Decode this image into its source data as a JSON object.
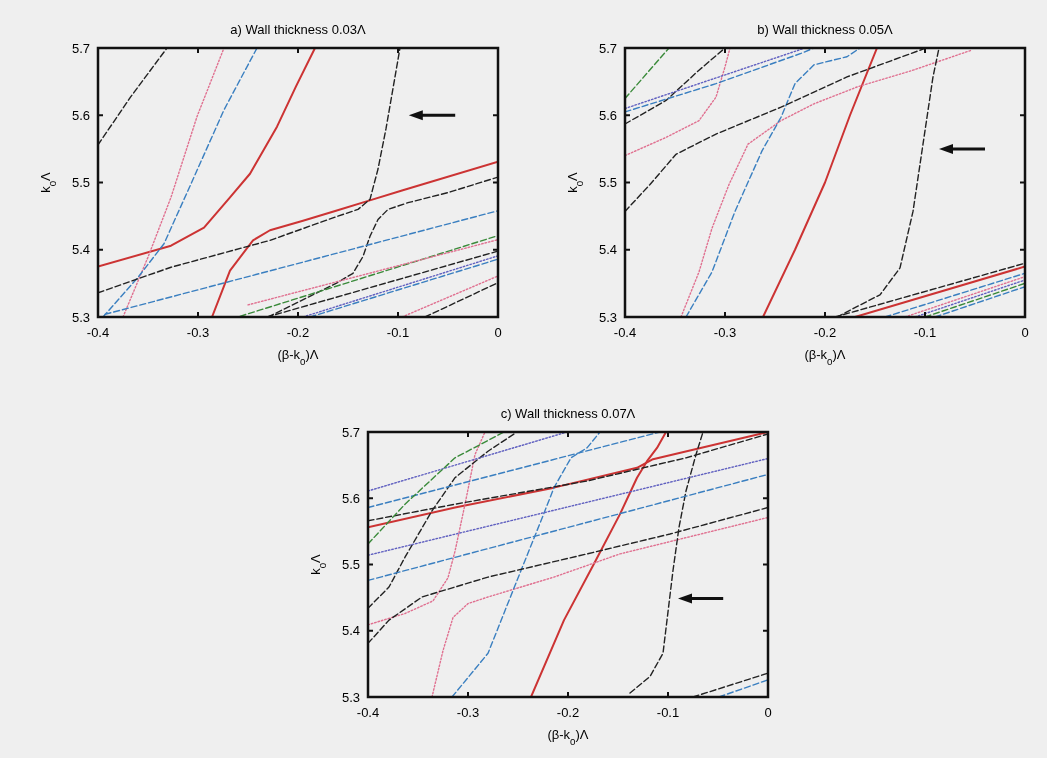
{
  "chart_data": [
    {
      "type": "line",
      "title": "a) Wall thickness 0.03Λ",
      "xlabel": "(β-k$_{0}$)Λ",
      "ylabel": "k$_{0}$Λ",
      "xlim": [
        -0.4,
        0
      ],
      "ylim": [
        5.3,
        5.7
      ],
      "xticks": [
        -0.4,
        -0.3,
        -0.2,
        -0.1,
        0
      ],
      "yticks": [
        5.3,
        5.4,
        5.5,
        5.6,
        5.7
      ],
      "series": [
        {
          "color": "#cc3333",
          "line_style": "solid",
          "x": [
            -0.4,
            -0.327,
            -0.294,
            -0.268,
            -0.248,
            -0.221,
            -0.202,
            -0.183
          ],
          "values": [
            5.375,
            5.406,
            5.433,
            5.478,
            5.513,
            5.583,
            5.643,
            5.7
          ]
        },
        {
          "color": "#cc3333",
          "line_style": "solid",
          "x": [
            -0.286,
            -0.268,
            -0.245,
            -0.228,
            -0.195,
            -0.162,
            -0.129,
            -0.096,
            0
          ],
          "values": [
            5.3,
            5.369,
            5.414,
            5.429,
            5.443,
            5.458,
            5.473,
            5.488,
            5.531
          ]
        },
        {
          "color": "#e07090",
          "line_style": "dotted",
          "x": [
            -0.375,
            -0.35,
            -0.327,
            -0.301,
            -0.274
          ],
          "values": [
            5.3,
            5.389,
            5.478,
            5.598,
            5.7
          ]
        },
        {
          "color": "#3a7fc0",
          "line_style": "dashed",
          "x": [
            -0.395,
            -0.36,
            -0.334,
            -0.307,
            -0.274,
            -0.241
          ],
          "values": [
            5.3,
            5.359,
            5.409,
            5.498,
            5.608,
            5.7
          ]
        },
        {
          "color": "#222222",
          "line_style": "dashed",
          "x": [
            -0.4,
            -0.367,
            -0.331
          ],
          "values": [
            5.556,
            5.628,
            5.7
          ]
        },
        {
          "color": "#222222",
          "line_style": "dashed",
          "x": [
            -0.4,
            -0.327,
            -0.228,
            -0.162,
            -0.14,
            -0.128,
            -0.12,
            -0.112,
            -0.105,
            -0.098
          ],
          "values": [
            5.336,
            5.374,
            5.414,
            5.449,
            5.46,
            5.475,
            5.52,
            5.58,
            5.64,
            5.7
          ]
        },
        {
          "color": "#222222",
          "line_style": "dashed",
          "x": [
            -0.23,
            -0.162,
            -0.145,
            -0.135,
            -0.128,
            -0.12,
            -0.11,
            -0.09,
            -0.05,
            0
          ],
          "values": [
            5.3,
            5.35,
            5.365,
            5.39,
            5.42,
            5.445,
            5.46,
            5.47,
            5.485,
            5.508
          ]
        },
        {
          "color": "#3a7fc0",
          "line_style": "dashed",
          "x": [
            -0.393,
            0
          ],
          "values": [
            5.304,
            5.458
          ]
        },
        {
          "color": "#3a8a3a",
          "line_style": "dashed",
          "x": [
            -0.258,
            0
          ],
          "values": [
            5.301,
            5.421
          ]
        },
        {
          "color": "#e07090",
          "line_style": "dotted",
          "x": [
            -0.25,
            0
          ],
          "values": [
            5.318,
            5.415
          ]
        },
        {
          "color": "#222222",
          "line_style": "dashed",
          "x": [
            -0.231,
            0
          ],
          "values": [
            5.3,
            5.398
          ]
        },
        {
          "color": "#6060c0",
          "line_style": "dotted",
          "x": [
            -0.195,
            0
          ],
          "values": [
            5.3,
            5.391
          ]
        },
        {
          "color": "#3a7fc0",
          "line_style": "dashed",
          "x": [
            -0.188,
            0
          ],
          "values": [
            5.3,
            5.386
          ]
        },
        {
          "color": "#e07090",
          "line_style": "dotted",
          "x": [
            -0.096,
            0
          ],
          "values": [
            5.3,
            5.361
          ]
        },
        {
          "color": "#222222",
          "line_style": "dashed",
          "x": [
            -0.073,
            0
          ],
          "values": [
            5.3,
            5.351
          ]
        }
      ]
    },
    {
      "type": "line",
      "title": "b) Wall thickness 0.05Λ",
      "xlabel": "(β-k$_{0}$)Λ",
      "ylabel": "k$_{0}$Λ",
      "xlim": [
        -0.4,
        0
      ],
      "ylim": [
        5.3,
        5.7
      ],
      "xticks": [
        -0.4,
        -0.3,
        -0.2,
        -0.1,
        0
      ],
      "yticks": [
        5.3,
        5.4,
        5.5,
        5.6,
        5.7
      ],
      "series": [
        {
          "color": "#cc3333",
          "line_style": "solid",
          "x": [
            -0.262,
            -0.23,
            -0.2,
            -0.175,
            -0.148
          ],
          "values": [
            5.3,
            5.4,
            5.5,
            5.6,
            5.7
          ]
        },
        {
          "color": "#e07090",
          "line_style": "dotted",
          "x": [
            -0.344,
            -0.326,
            -0.313,
            -0.296,
            -0.277,
            -0.244,
            -0.211,
            -0.168,
            -0.112,
            -0.053
          ],
          "values": [
            5.3,
            5.367,
            5.432,
            5.497,
            5.557,
            5.592,
            5.617,
            5.642,
            5.667,
            5.697
          ]
        },
        {
          "color": "#e07090",
          "line_style": "dotted",
          "x": [
            -0.4,
            -0.359,
            -0.326,
            -0.309,
            -0.3,
            -0.295
          ],
          "values": [
            5.54,
            5.567,
            5.592,
            5.627,
            5.672,
            5.7
          ]
        },
        {
          "color": "#3a7fc0",
          "line_style": "dashed",
          "x": [
            -0.339,
            -0.313,
            -0.29,
            -0.263,
            -0.244,
            -0.23,
            -0.211,
            -0.178,
            -0.165
          ],
          "values": [
            5.3,
            5.367,
            5.457,
            5.547,
            5.597,
            5.647,
            5.675,
            5.687,
            5.7
          ]
        },
        {
          "color": "#222222",
          "line_style": "dashed",
          "x": [
            -0.4,
            -0.375,
            -0.349,
            -0.309,
            -0.244,
            -0.178,
            -0.099
          ],
          "values": [
            5.457,
            5.497,
            5.542,
            5.572,
            5.612,
            5.657,
            5.7
          ]
        },
        {
          "color": "#222222",
          "line_style": "dashed",
          "x": [
            -0.4,
            -0.359,
            -0.326,
            -0.3
          ],
          "values": [
            5.587,
            5.622,
            5.667,
            5.7
          ]
        },
        {
          "color": "#3a7fc0",
          "line_style": "dashed",
          "x": [
            -0.4,
            -0.309,
            -0.224,
            -0.211
          ],
          "values": [
            5.605,
            5.647,
            5.692,
            5.7
          ]
        },
        {
          "color": "#6060c0",
          "line_style": "dotted",
          "x": [
            -0.4,
            -0.22
          ],
          "values": [
            5.61,
            5.7
          ]
        },
        {
          "color": "#3a8a3a",
          "line_style": "dashed",
          "x": [
            -0.4,
            -0.356
          ],
          "values": [
            5.625,
            5.7
          ]
        },
        {
          "color": "#222222",
          "line_style": "dashed",
          "x": [
            -0.188,
            -0.145,
            -0.125,
            -0.112,
            -0.102,
            -0.092,
            -0.086
          ],
          "values": [
            5.3,
            5.333,
            5.373,
            5.457,
            5.557,
            5.657,
            5.7
          ]
        },
        {
          "color": "#222222",
          "line_style": "dashed",
          "x": [
            -0.19,
            0
          ],
          "values": [
            5.3,
            5.38
          ]
        },
        {
          "color": "#cc3333",
          "line_style": "solid",
          "x": [
            -0.17,
            0
          ],
          "values": [
            5.3,
            5.375
          ]
        },
        {
          "color": "#3a7fc0",
          "line_style": "dashed",
          "x": [
            -0.14,
            0
          ],
          "values": [
            5.3,
            5.365
          ]
        },
        {
          "color": "#e07090",
          "line_style": "dotted",
          "x": [
            -0.12,
            0
          ],
          "values": [
            5.3,
            5.36
          ]
        },
        {
          "color": "#6060c0",
          "line_style": "dotted",
          "x": [
            -0.11,
            0
          ],
          "values": [
            5.3,
            5.355
          ]
        },
        {
          "color": "#3a8a3a",
          "line_style": "dashed",
          "x": [
            -0.1,
            0
          ],
          "values": [
            5.3,
            5.35
          ]
        },
        {
          "color": "#3a7fc0",
          "line_style": "dashed",
          "x": [
            -0.09,
            0
          ],
          "values": [
            5.3,
            5.345
          ]
        }
      ]
    },
    {
      "type": "line",
      "title": "c) Wall thickness 0.07Λ",
      "xlabel": "(β-k$_{0}$)Λ",
      "ylabel": "k$_{0}$Λ",
      "xlim": [
        -0.4,
        0
      ],
      "ylim": [
        5.3,
        5.7
      ],
      "xticks": [
        -0.4,
        -0.3,
        -0.2,
        -0.1,
        0
      ],
      "yticks": [
        5.3,
        5.4,
        5.5,
        5.6,
        5.7
      ],
      "series": [
        {
          "color": "#cc3333",
          "line_style": "solid",
          "x": [
            -0.4,
            -0.313,
            -0.214,
            -0.131,
            -0.115,
            0
          ],
          "values": [
            5.556,
            5.586,
            5.616,
            5.646,
            5.659,
            5.7
          ]
        },
        {
          "color": "#cc3333",
          "line_style": "solid",
          "x": [
            -0.237,
            -0.204,
            -0.174,
            -0.148,
            -0.131,
            -0.121,
            -0.111,
            -0.102
          ],
          "values": [
            5.3,
            5.416,
            5.501,
            5.576,
            5.631,
            5.656,
            5.676,
            5.7
          ]
        },
        {
          "color": "#e07090",
          "line_style": "dotted",
          "x": [
            -0.4,
            -0.363,
            -0.335,
            -0.32,
            -0.313,
            -0.303,
            -0.293,
            -0.283
          ],
          "values": [
            5.409,
            5.426,
            5.445,
            5.48,
            5.52,
            5.591,
            5.666,
            5.7
          ]
        },
        {
          "color": "#e07090",
          "line_style": "dotted",
          "x": [
            -0.336,
            -0.325,
            -0.315,
            -0.3,
            -0.28,
            -0.214,
            -0.148,
            0
          ],
          "values": [
            5.3,
            5.37,
            5.42,
            5.441,
            5.451,
            5.481,
            5.516,
            5.571
          ]
        },
        {
          "color": "#3a7fc0",
          "line_style": "dashed",
          "x": [
            -0.316,
            -0.28,
            -0.247,
            -0.227,
            -0.214,
            -0.197,
            -0.181,
            -0.168
          ],
          "values": [
            5.3,
            5.366,
            5.491,
            5.566,
            5.616,
            5.661,
            5.676,
            5.7
          ]
        },
        {
          "color": "#222222",
          "line_style": "dashed",
          "x": [
            -0.138,
            -0.118,
            -0.105,
            -0.095,
            -0.089,
            -0.082,
            -0.072,
            -0.065
          ],
          "values": [
            5.306,
            5.331,
            5.366,
            5.491,
            5.556,
            5.611,
            5.666,
            5.7
          ]
        },
        {
          "color": "#222222",
          "line_style": "dashed",
          "x": [
            -0.4,
            -0.379,
            -0.346,
            -0.28,
            -0.181,
            -0.098,
            0
          ],
          "values": [
            5.381,
            5.416,
            5.451,
            5.481,
            5.516,
            5.546,
            5.586
          ]
        },
        {
          "color": "#222222",
          "line_style": "dashed",
          "x": [
            -0.4,
            -0.379,
            -0.363,
            -0.336,
            -0.313,
            -0.28,
            -0.254
          ],
          "values": [
            5.434,
            5.466,
            5.511,
            5.581,
            5.631,
            5.671,
            5.697
          ]
        },
        {
          "color": "#222222",
          "line_style": "dashed",
          "x": [
            -0.4,
            -0.313,
            -0.181,
            -0.082,
            0
          ],
          "values": [
            5.566,
            5.591,
            5.626,
            5.661,
            5.697
          ]
        },
        {
          "color": "#3a7fc0",
          "line_style": "dashed",
          "x": [
            -0.4,
            0
          ],
          "values": [
            5.476,
            5.636
          ]
        },
        {
          "color": "#3a7fc0",
          "line_style": "dashed",
          "x": [
            -0.4,
            -0.108
          ],
          "values": [
            5.586,
            5.7
          ]
        },
        {
          "color": "#6060c0",
          "line_style": "dotted",
          "x": [
            -0.4,
            -0.201
          ],
          "values": [
            5.611,
            5.7
          ]
        },
        {
          "color": "#6060c0",
          "line_style": "dotted",
          "x": [
            -0.4,
            0
          ],
          "values": [
            5.514,
            5.66
          ]
        },
        {
          "color": "#3a8a3a",
          "line_style": "dashed",
          "x": [
            -0.4,
            -0.363,
            -0.313,
            -0.264
          ],
          "values": [
            5.531,
            5.591,
            5.661,
            5.7
          ]
        },
        {
          "color": "#222222",
          "line_style": "dashed",
          "x": [
            -0.075,
            0
          ],
          "values": [
            5.3,
            5.336
          ]
        },
        {
          "color": "#3a7fc0",
          "line_style": "dashed",
          "x": [
            -0.049,
            0
          ],
          "values": [
            5.3,
            5.326
          ]
        }
      ]
    }
  ]
}
